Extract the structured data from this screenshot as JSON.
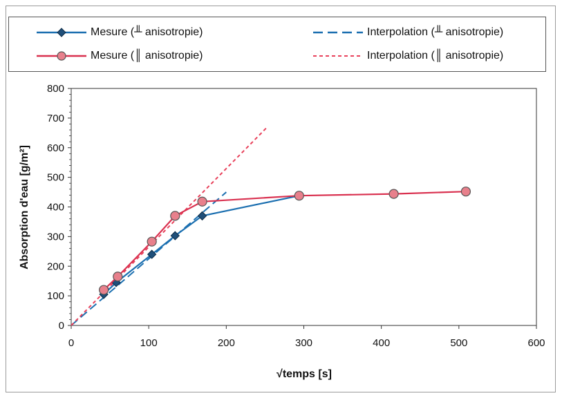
{
  "chart_data": {
    "type": "line",
    "xlabel": "√temps [s]",
    "ylabel": "Absorption d'eau [g/m²]",
    "xlim": [
      0,
      600
    ],
    "ylim": [
      0,
      800
    ],
    "x_ticks": [
      0,
      100,
      200,
      300,
      400,
      500,
      600
    ],
    "y_ticks": [
      0,
      100,
      200,
      300,
      400,
      500,
      600,
      700,
      800
    ],
    "x_tick_labels": [
      "0",
      "100",
      "200",
      "300",
      "400",
      "500",
      "600"
    ],
    "y_tick_labels": [
      "0",
      "100",
      "200",
      "300",
      "400",
      "500",
      "600",
      "700",
      "800"
    ],
    "legend_placement": "top",
    "series": [
      {
        "name": "Mesure (╨ anisotropie)",
        "style": "solid-diamond",
        "color": "#1b6fb0",
        "x": [
          42,
          58,
          104,
          134,
          169,
          294
        ],
        "y": [
          105,
          145,
          240,
          303,
          370,
          438
        ]
      },
      {
        "name": "Mesure (║ anisotropie)",
        "style": "solid-circle",
        "color": "#d9304f",
        "marker_fill": "#e8808c",
        "x": [
          42,
          60,
          104,
          134,
          169,
          294,
          416,
          509
        ],
        "y": [
          120,
          165,
          283,
          370,
          418,
          438,
          444,
          452
        ]
      },
      {
        "name": "Interpolation (╨ anisotropie)",
        "style": "long-dash",
        "color": "#1b6fb0",
        "x": [
          0,
          200
        ],
        "y": [
          0,
          450
        ]
      },
      {
        "name": "Interpolation (║ anisotropie)",
        "style": "short-dash",
        "color": "#e8405a",
        "x": [
          0,
          253
        ],
        "y": [
          0,
          670
        ]
      }
    ]
  }
}
